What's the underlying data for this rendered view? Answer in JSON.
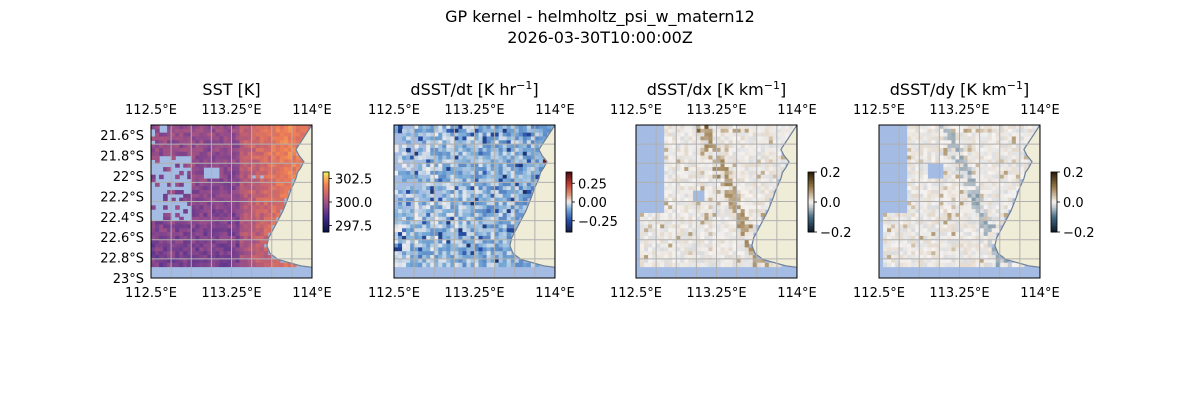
{
  "figure": {
    "title_line1": "GP kernel - helmholtz_psi_w_matern12",
    "title_line2": "2026-03-30T10:00:00Z"
  },
  "colors": {
    "ocean": "#a4bce4",
    "land": "#efecd8",
    "coast": "#6d7f95",
    "gridline": "#b0b0b0",
    "sst_warm": "#f07f54",
    "sst_mid": "#c46476",
    "sst_cool": "#a35c86"
  },
  "chart_data": [
    {
      "type": "heatmap",
      "title": "SST [K]",
      "title_base": "SST [K]",
      "title_sup": "",
      "title_tail": "",
      "colormap": "thermal",
      "clim": [
        296.8,
        303.2
      ],
      "colorbar_ticks": [
        297.5,
        300.0,
        302.5
      ],
      "colorbar_tick_labels": [
        "297.5",
        "300.0",
        "302.5"
      ],
      "x_ticks": [
        112.5,
        113.25,
        114.0
      ],
      "x_tick_labels": [
        "112.5°E",
        "113.25°E",
        "114°E"
      ],
      "y_ticks": [
        -21.6,
        -21.8,
        -22.0,
        -22.2,
        -22.4,
        -22.6,
        -22.8,
        -23.0
      ],
      "y_tick_labels": [
        "21.6°S",
        "21.8°S",
        "22°S",
        "22.2°S",
        "22.4°S",
        "22.6°S",
        "22.8°S",
        "23°S"
      ],
      "show_y_labels": true,
      "extent": {
        "lon": [
          112.5,
          114.0
        ],
        "lat": [
          -23.0,
          -21.5
        ]
      },
      "grid": true
    },
    {
      "type": "heatmap",
      "title": "dSST/dt [K hr−1]",
      "title_base": "dSST/dt [K hr",
      "title_sup": "−1",
      "title_tail": "]",
      "colormap": "balance",
      "clim": [
        -0.4,
        0.4
      ],
      "colorbar_ticks": [
        0.25,
        0.0,
        -0.25
      ],
      "colorbar_tick_labels": [
        "0.25",
        "0.00",
        "−0.25"
      ],
      "x_ticks": [
        112.5,
        113.25,
        114.0
      ],
      "x_tick_labels": [
        "112.5°E",
        "113.25°E",
        "114°E"
      ],
      "show_y_labels": false,
      "extent": {
        "lon": [
          112.5,
          114.0
        ],
        "lat": [
          -23.0,
          -21.5
        ]
      },
      "grid": true
    },
    {
      "type": "heatmap",
      "title": "dSST/dx [K km−1]",
      "title_base": "dSST/dx [K km",
      "title_sup": "−1",
      "title_tail": "]",
      "colormap": "diff",
      "clim": [
        -0.2,
        0.2
      ],
      "colorbar_ticks": [
        0.2,
        0.0,
        -0.2
      ],
      "colorbar_tick_labels": [
        "0.2",
        "0.0",
        "−0.2"
      ],
      "x_ticks": [
        112.5,
        113.25,
        114.0
      ],
      "x_tick_labels": [
        "112.5°E",
        "113.25°E",
        "114°E"
      ],
      "show_y_labels": false,
      "extent": {
        "lon": [
          112.5,
          114.0
        ],
        "lat": [
          -23.0,
          -21.5
        ]
      },
      "grid": true
    },
    {
      "type": "heatmap",
      "title": "dSST/dy [K km−1]",
      "title_base": "dSST/dy [K km",
      "title_sup": "−1",
      "title_tail": "]",
      "colormap": "diff",
      "clim": [
        -0.2,
        0.2
      ],
      "colorbar_ticks": [
        0.2,
        0.0,
        -0.2
      ],
      "colorbar_tick_labels": [
        "0.2",
        "0.0",
        "−0.2"
      ],
      "x_ticks": [
        112.5,
        113.25,
        114.0
      ],
      "x_tick_labels": [
        "112.5°E",
        "113.25°E",
        "114°E"
      ],
      "show_y_labels": false,
      "extent": {
        "lon": [
          112.5,
          114.0
        ],
        "lat": [
          -23.0,
          -21.5
        ]
      },
      "grid": true
    }
  ]
}
